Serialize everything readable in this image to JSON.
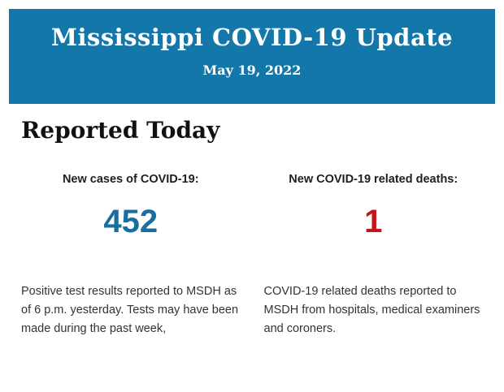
{
  "header": {
    "title": "Mississippi COVID-19 Update",
    "date": "May 19, 2022",
    "background_color": "#1377a9",
    "text_color": "#ffffff"
  },
  "main": {
    "section_title": "Reported Today",
    "stats": [
      {
        "label": "New cases of COVID-19:",
        "value": "452",
        "value_color": "#176f9f",
        "description": "Positive test results reported to MSDH as of 6 p.m. yesterday. Tests may have been made during the past week,"
      },
      {
        "label": "New COVID-19 related deaths:",
        "value": "1",
        "value_color": "#c2161c",
        "description": "COVID-19 related deaths reported to MSDH from hospitals, medical examiners and coroners."
      }
    ]
  }
}
